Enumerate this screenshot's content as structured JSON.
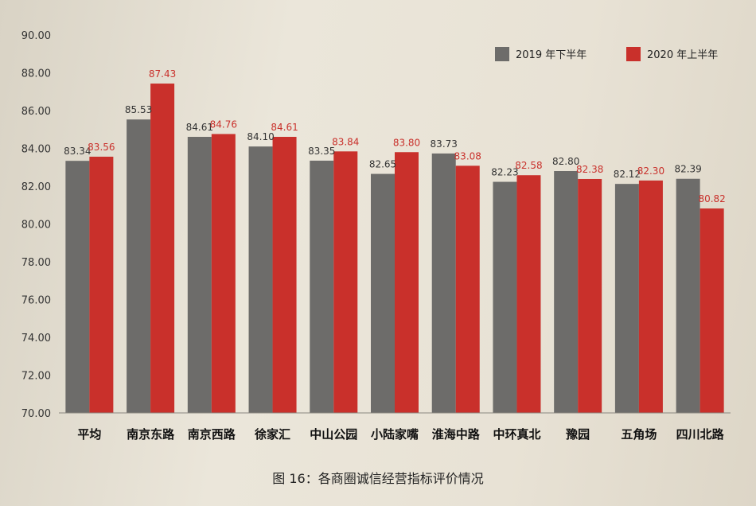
{
  "chart_data": {
    "type": "bar",
    "categories": [
      "平均",
      "南京东路",
      "南京西路",
      "徐家汇",
      "中山公园",
      "小陆家嘴",
      "淮海中路",
      "中环真北",
      "豫园",
      "五角场",
      "四川北路"
    ],
    "series": [
      {
        "name": "2019 年下半年",
        "color": "#6d6c6a",
        "values": [
          83.34,
          85.53,
          84.61,
          84.1,
          83.35,
          82.65,
          83.73,
          82.23,
          82.8,
          82.12,
          82.39
        ],
        "labels": [
          "83.34",
          "85.53",
          "84.61",
          "84.10",
          "83.35",
          "82.65",
          "83.73",
          "82.23",
          "82.80",
          "82.12",
          "82.39"
        ]
      },
      {
        "name": "2020 年上半年",
        "color": "#c9302b",
        "values": [
          83.56,
          87.43,
          84.76,
          84.61,
          83.84,
          83.8,
          83.08,
          82.58,
          82.38,
          82.3,
          80.82
        ],
        "labels": [
          "83.56",
          "87.43",
          "84.76",
          "84.61",
          "83.84",
          "83.80",
          "83.08",
          "82.58",
          "82.38",
          "82.30",
          "80.82"
        ]
      }
    ],
    "ylim": [
      70,
      90
    ],
    "yticks": [
      "70.00",
      "72.00",
      "74.00",
      "76.00",
      "78.00",
      "80.00",
      "82.00",
      "84.00",
      "86.00",
      "88.00",
      "90.00"
    ],
    "legend_position": "top-right",
    "grid": false
  },
  "caption": "图 16：各商圈诚信经营指标评价情况"
}
